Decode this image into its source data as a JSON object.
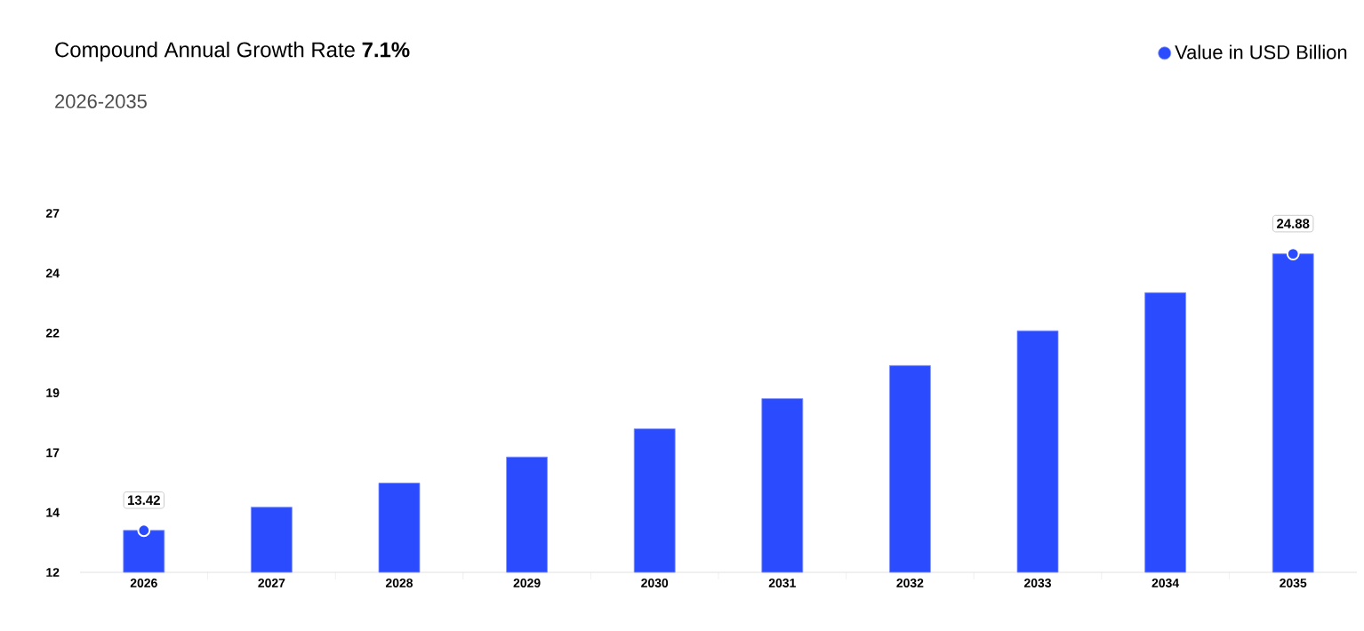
{
  "chart_data": {
    "type": "bar",
    "title": "Compound Annual Growth Rate **7.1%**",
    "subtitle": "2026-2035",
    "categories": [
      "2026",
      "2027",
      "2028",
      "2029",
      "2030",
      "2031",
      "2032",
      "2033",
      "2034",
      "2035"
    ],
    "series": [
      {
        "name": "Value in USD Billion",
        "color": "#2b4bff",
        "values": [
          13.42,
          14.38,
          15.38,
          16.46,
          17.63,
          18.88,
          20.25,
          21.69,
          23.27,
          24.88
        ],
        "value_labels": [
          "13.42",
          null,
          null,
          null,
          null,
          null,
          null,
          null,
          null,
          "24.88"
        ]
      },
      {
        "type": "scatter",
        "color": "#2b4bff",
        "marker": "circle",
        "values": [
          13.42,
          null,
          null,
          null,
          null,
          null,
          null,
          null,
          null,
          24.88
        ]
      }
    ],
    "ylim": [
      11.68,
      26.56
    ],
    "yticks": [
      {
        "value": 11.68,
        "label": "12"
      },
      {
        "value": 14.16,
        "label": "14"
      },
      {
        "value": 16.64,
        "label": "17"
      },
      {
        "value": 19.12,
        "label": "19"
      },
      {
        "value": 21.6,
        "label": "22"
      },
      {
        "value": 24.08,
        "label": "24"
      },
      {
        "value": 26.56,
        "label": "27"
      }
    ],
    "grid": false,
    "legend": "top right"
  }
}
